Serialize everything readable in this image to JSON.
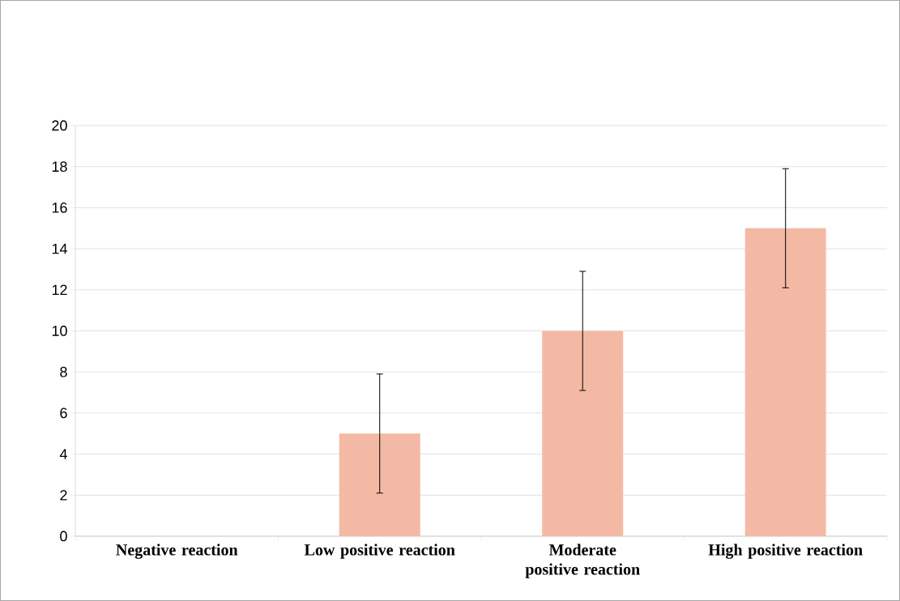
{
  "chart_data": {
    "type": "bar",
    "categories": [
      "Negative reaction",
      "Low positive reaction",
      "Moderate positive reaction",
      "High positive reaction"
    ],
    "values": [
      0,
      5,
      10,
      15
    ],
    "errors": [
      null,
      2.9,
      2.9,
      2.9
    ],
    "color": "#f4b9a5",
    "ylim": [
      0,
      20
    ],
    "yticks": [
      0,
      2,
      4,
      6,
      8,
      10,
      12,
      14,
      16,
      18,
      20
    ],
    "grid": "y"
  }
}
